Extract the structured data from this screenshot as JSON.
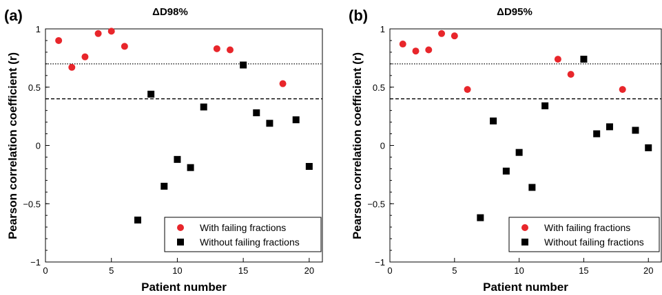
{
  "chart_data": [
    {
      "type": "scatter",
      "panel_label": "(a)",
      "title": "ΔD98%",
      "xlabel": "Patient number",
      "ylabel": "Pearson correlation coefficient (r)",
      "xlim": [
        0,
        21
      ],
      "ylim": [
        -1,
        1
      ],
      "xticks": [
        "0",
        "5",
        "10",
        "15",
        "20"
      ],
      "yticks": [
        "−1",
        "−0.5",
        "0",
        "0.5",
        "1"
      ],
      "reference_lines": [
        {
          "y": 0.7,
          "style": "dotted"
        },
        {
          "y": 0.4,
          "style": "dashed"
        }
      ],
      "legend_position": "bottom-right",
      "series": [
        {
          "name": "With failing fractions",
          "marker": "circle",
          "color": "#e8262b",
          "points": [
            [
              1,
              0.9
            ],
            [
              2,
              0.67
            ],
            [
              3,
              0.76
            ],
            [
              4,
              0.96
            ],
            [
              5,
              0.98
            ],
            [
              6,
              0.85
            ],
            [
              13,
              0.83
            ],
            [
              14,
              0.82
            ],
            [
              18,
              0.53
            ]
          ]
        },
        {
          "name": "Without failing fractions",
          "marker": "square",
          "color": "#000000",
          "points": [
            [
              7,
              -0.64
            ],
            [
              8,
              0.44
            ],
            [
              9,
              -0.35
            ],
            [
              10,
              -0.12
            ],
            [
              11,
              -0.19
            ],
            [
              12,
              0.33
            ],
            [
              15,
              0.69
            ],
            [
              16,
              0.28
            ],
            [
              17,
              0.19
            ],
            [
              19,
              0.22
            ],
            [
              20,
              -0.18
            ]
          ]
        }
      ]
    },
    {
      "type": "scatter",
      "panel_label": "(b)",
      "title": "ΔD95%",
      "xlabel": "Patient number",
      "ylabel": "Pearson correlation coefficient (r)",
      "xlim": [
        0,
        21
      ],
      "ylim": [
        -1,
        1
      ],
      "xticks": [
        "0",
        "5",
        "10",
        "15",
        "20"
      ],
      "yticks": [
        "−1",
        "−0.5",
        "0",
        "0.5",
        "1"
      ],
      "reference_lines": [
        {
          "y": 0.7,
          "style": "dotted"
        },
        {
          "y": 0.4,
          "style": "dashed"
        }
      ],
      "legend_position": "bottom-right",
      "series": [
        {
          "name": "With failing fractions",
          "marker": "circle",
          "color": "#e8262b",
          "points": [
            [
              1,
              0.87
            ],
            [
              2,
              0.81
            ],
            [
              3,
              0.82
            ],
            [
              4,
              0.96
            ],
            [
              5,
              0.94
            ],
            [
              6,
              0.48
            ],
            [
              13,
              0.74
            ],
            [
              14,
              0.61
            ],
            [
              18,
              0.48
            ]
          ]
        },
        {
          "name": "Without failing fractions",
          "marker": "square",
          "color": "#000000",
          "points": [
            [
              7,
              -0.62
            ],
            [
              8,
              0.21
            ],
            [
              9,
              -0.22
            ],
            [
              10,
              -0.06
            ],
            [
              11,
              -0.36
            ],
            [
              12,
              0.34
            ],
            [
              15,
              0.74
            ],
            [
              16,
              0.1
            ],
            [
              17,
              0.16
            ],
            [
              19,
              0.13
            ],
            [
              20,
              -0.02
            ]
          ]
        }
      ]
    }
  ]
}
